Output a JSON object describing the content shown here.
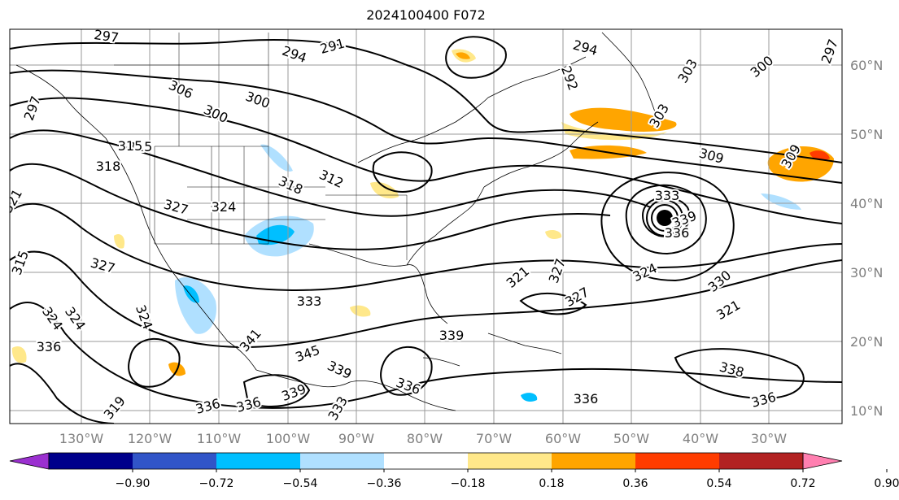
{
  "title": "2024100400 F072",
  "lat_labels": [
    "60°N",
    "50°N",
    "40°N",
    "30°N",
    "20°N",
    "10°N"
  ],
  "lon_labels": [
    "130°W",
    "120°W",
    "110°W",
    "100°W",
    "90°W",
    "80°W",
    "70°W",
    "60°W",
    "50°W",
    "40°W",
    "30°W"
  ],
  "contour_labels": [
    "297",
    "291",
    "294",
    "294",
    "300",
    "303",
    "300",
    "297",
    "297",
    "306",
    "300",
    "315",
    "292",
    "303",
    "309",
    "309",
    "315",
    "318",
    "318",
    "312",
    "327",
    "324",
    "321",
    "333",
    "339",
    "336",
    "327",
    "321",
    "327",
    "324",
    "330",
    "327",
    "324",
    "321",
    "333",
    "341",
    "345",
    "339",
    "336",
    "333",
    "339",
    "336",
    "336",
    "336",
    "336",
    "338",
    "339",
    "324",
    "324",
    "319",
    "315",
    "336"
  ],
  "colorbar": {
    "ticks": [
      "−0.90",
      "−0.72",
      "−0.54",
      "−0.36",
      "−0.18",
      "0.18",
      "0.36",
      "0.54",
      "0.72",
      "0.90"
    ],
    "colors": [
      "#9b30d0",
      "#00008b",
      "#3155c8",
      "#00bfff",
      "#b0e0ff",
      "#ffffff",
      "#ffe88a",
      "#ffa500",
      "#ff3c00",
      "#b22222",
      "#ff7fb0"
    ]
  }
}
